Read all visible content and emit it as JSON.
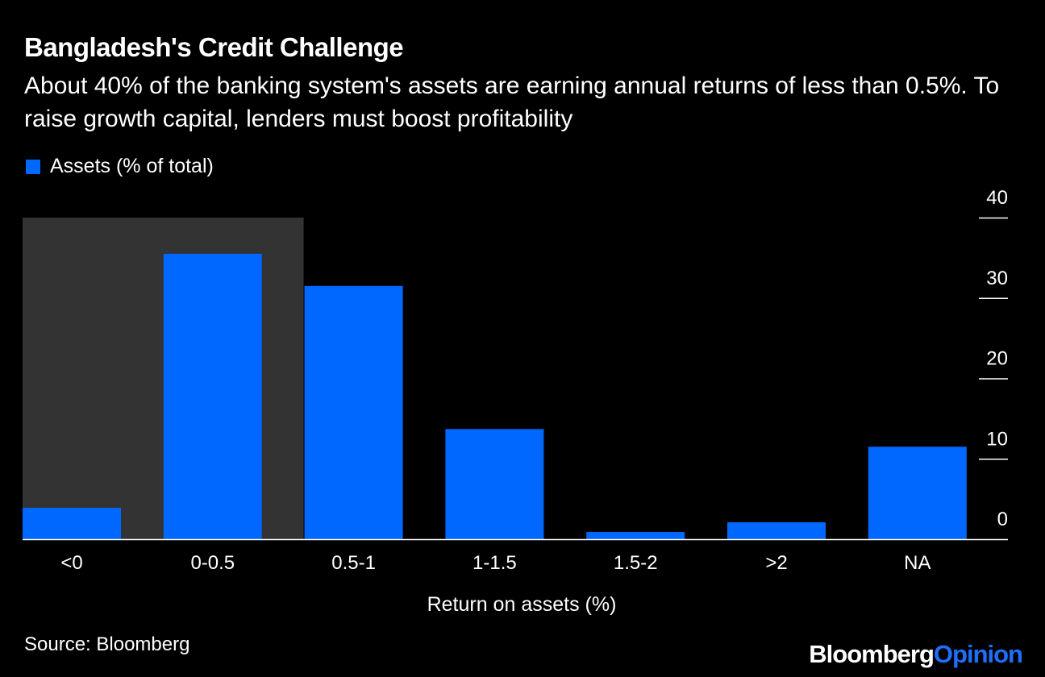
{
  "header": {
    "title": "Bangladesh's Credit Challenge",
    "subtitle": "About 40% of the banking system's assets are earning annual returns of less than 0.5%. To raise growth capital, lenders must boost profitability"
  },
  "footer": {
    "source": "Source: Bloomberg",
    "brand_main": "Bloomberg",
    "brand_accent": "Opinion"
  },
  "colors": {
    "background": "#000000",
    "bar": "#0068ff",
    "highlight": "#333333",
    "text": "#ffffff",
    "brand_accent": "#1f6fff"
  },
  "chart_data": {
    "type": "bar",
    "title": "Bangladesh's Credit Challenge",
    "xlabel": "Return on assets (%)",
    "ylabel": "",
    "categories": [
      "<0",
      "0-0.5",
      "0.5-1",
      "1-1.5",
      "1.5-2",
      ">2",
      "NA"
    ],
    "series": [
      {
        "name": "Assets (% of total)",
        "values": [
          3.9,
          35.5,
          31.5,
          13.7,
          0.9,
          2.1,
          11.5
        ]
      }
    ],
    "y_ticks": [
      0,
      10,
      20,
      30,
      40
    ],
    "ylim": [
      0,
      40
    ],
    "y_axis_position": "right",
    "grid": false,
    "legend_position": "top-left",
    "highlight_categories": [
      "<0",
      "0-0.5"
    ]
  }
}
